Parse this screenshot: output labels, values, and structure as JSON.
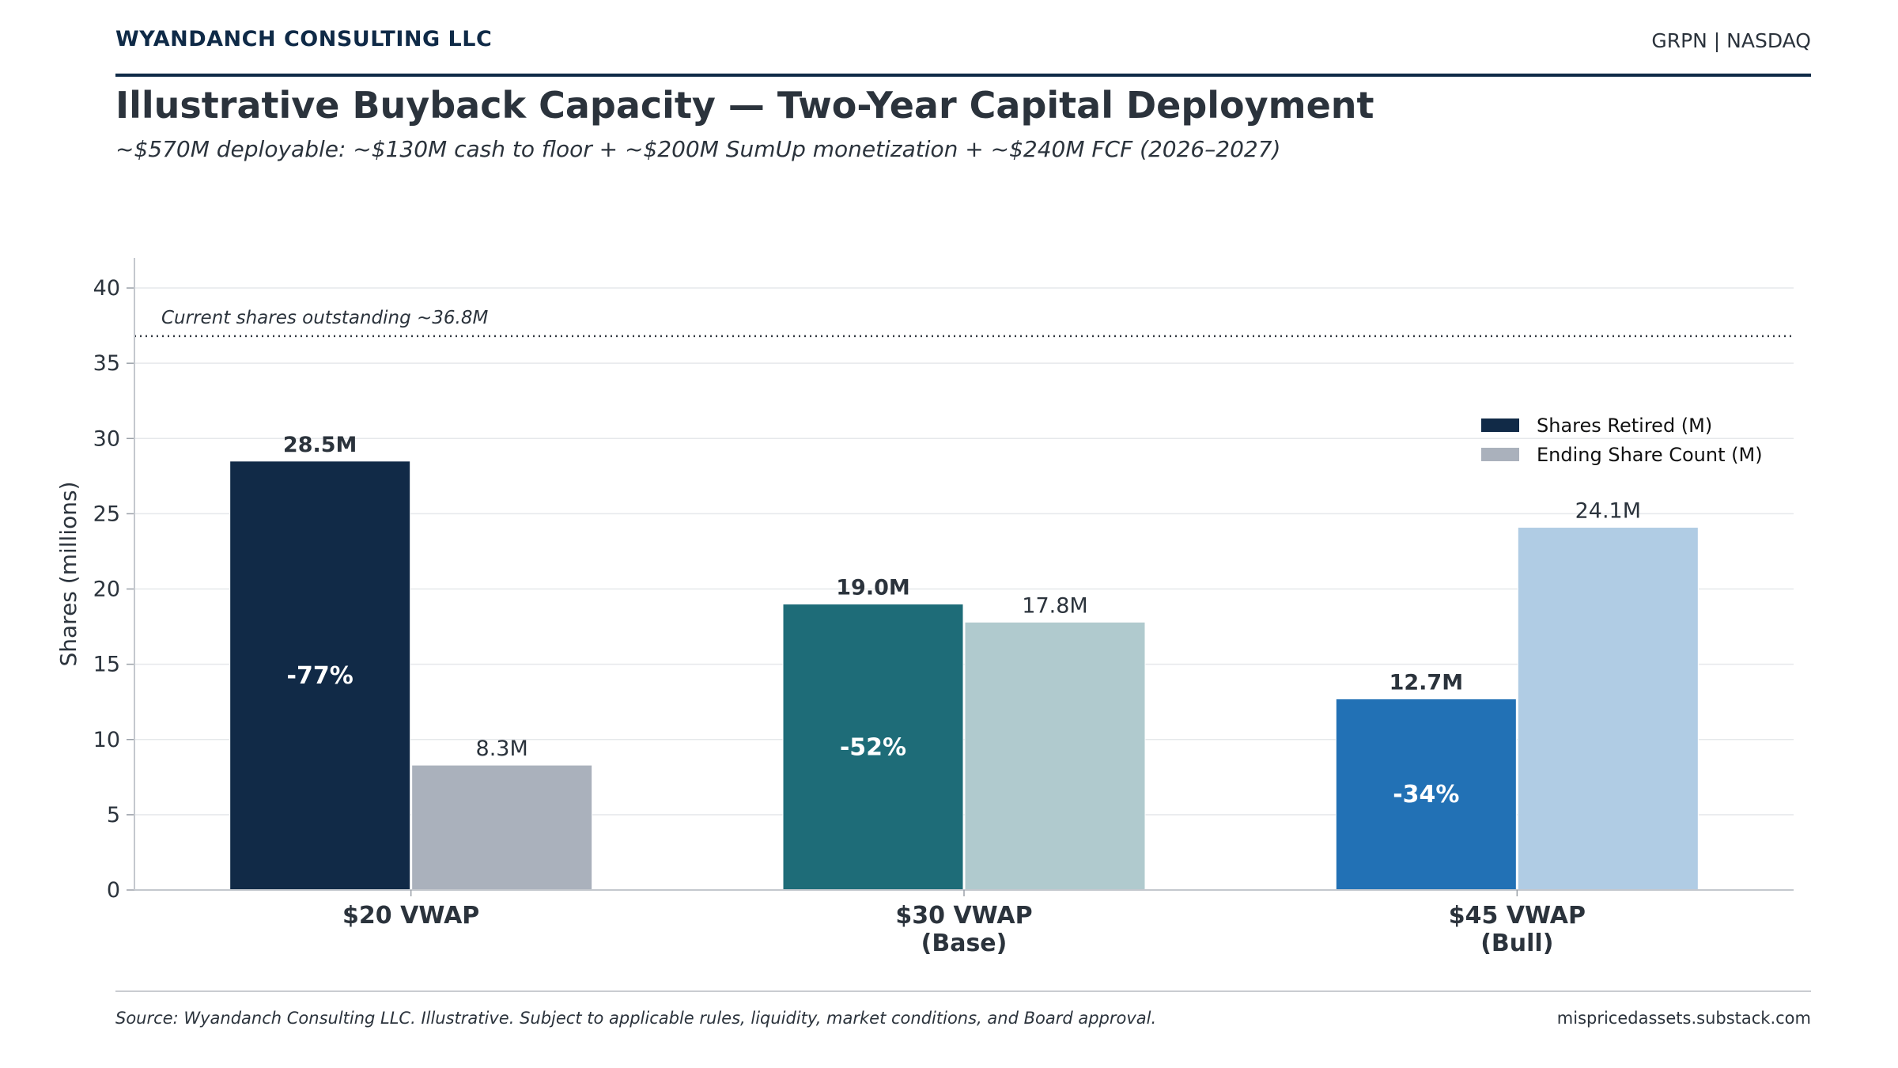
{
  "header": {
    "firm": "WYANDANCH CONSULTING LLC",
    "ticker": "GRPN | NASDAQ",
    "title": "Illustrative Buyback Capacity — Two-Year Capital Deployment",
    "subtitle": "~$570M deployable: ~$130M cash to floor + ~$200M SumUp monetization + ~$240M FCF (2026–2027)"
  },
  "footer": {
    "source": "Source: Wyandanch Consulting LLC. Illustrative. Subject to applicable rules, liquidity, market conditions, and Board approval.",
    "site": "mispricedassets.substack.com"
  },
  "chart_data": {
    "type": "bar",
    "ylabel": "Shares (millions)",
    "ylim": [
      0,
      42
    ],
    "yticks": [
      0,
      5,
      10,
      15,
      20,
      25,
      30,
      35,
      40
    ],
    "grid": true,
    "legend_position": "top-right",
    "categories": [
      [
        "$20 VWAP"
      ],
      [
        "$30 VWAP",
        "(Base)"
      ],
      [
        "$45 VWAP",
        "(Bull)"
      ]
    ],
    "reference_line": {
      "value": 36.8,
      "label": "Current shares outstanding ~36.8M"
    },
    "series": [
      {
        "name": "Shares Retired (M)",
        "values": [
          28.5,
          19.0,
          12.7
        ],
        "labels": [
          "28.5M",
          "19.0M",
          "12.7M"
        ],
        "inner_labels": [
          "-77%",
          "-52%",
          "-34%"
        ],
        "colors": [
          "#112a47",
          "#1e6c78",
          "#2271b5"
        ],
        "legend_color": "#112a47"
      },
      {
        "name": "Ending Share Count (M)",
        "values": [
          8.3,
          17.8,
          24.1
        ],
        "labels": [
          "8.3M",
          "17.8M",
          "24.1M"
        ],
        "colors": [
          "#aab1bc",
          "#b0cace",
          "#b0cce4"
        ],
        "legend_color": "#aab1bc"
      }
    ]
  }
}
